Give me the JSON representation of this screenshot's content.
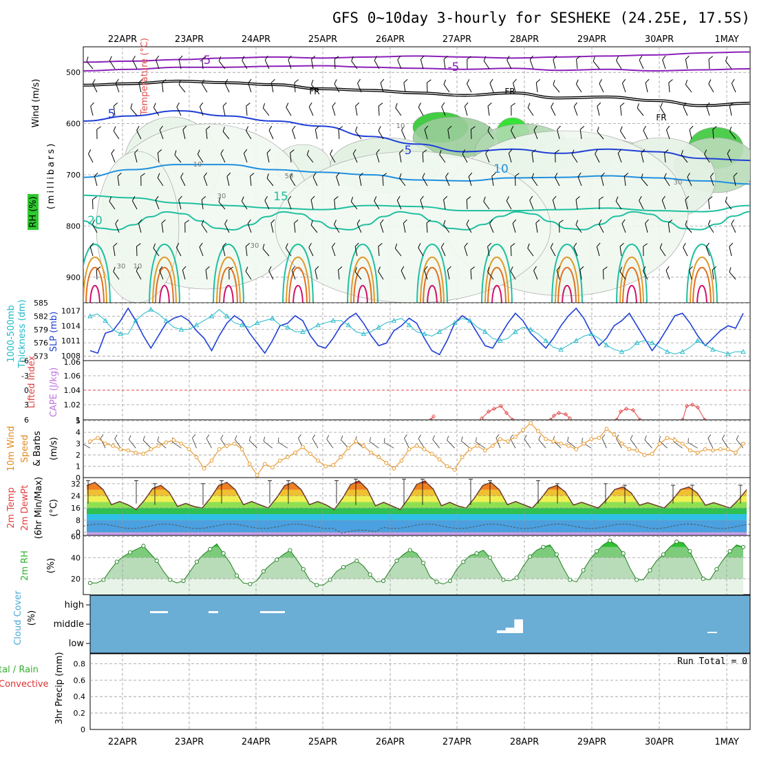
{
  "title": "GFS 0~10day 3-hourly for SESHEKE (24.25E, 17.5S)",
  "date_labels": [
    "22APR",
    "23APR",
    "24APR",
    "25APR",
    "26APR",
    "27APR",
    "28APR",
    "29APR",
    "30APR",
    "1MAY"
  ],
  "colors": {
    "purple": "#8b1fb8",
    "blue_dark": "#1f3fd8",
    "blue_mid": "#1f8fe0",
    "teal": "#1fbfa0",
    "orange": "#e09a2a",
    "magenta": "#d0106a",
    "wind": "#000000",
    "rh_green": "#20d020",
    "cyan": "#20b8c8",
    "orange_line": "#e89a30",
    "cape_red": "#e04040",
    "cloud_blue": "#6aaed6"
  },
  "chart_data": [
    {
      "type": "contour",
      "panel": "upper-air",
      "y_axis_label": "(millibars)",
      "y_ticks": [
        500,
        600,
        700,
        800,
        900
      ],
      "ylim": [
        450,
        950
      ],
      "legend_labels": {
        "wind": "Wind (m/s)",
        "temperature": "Temperature (°C)",
        "rh": "RH (%)"
      },
      "isotherm_labels": [
        "-5",
        "-5",
        "FR",
        "FR",
        "FR",
        "5",
        "5",
        "10",
        "15",
        "20"
      ],
      "rh_labels": [
        "10",
        "10",
        "30",
        "30",
        "50",
        "30",
        "10",
        "30"
      ],
      "isotherms": [
        {
          "label": "-5",
          "level": [
            480,
            478,
            475,
            472,
            470,
            472,
            470,
            468,
            470,
            472,
            470,
            468,
            466,
            462,
            460
          ],
          "color": "purple"
        },
        {
          "label": "-5b",
          "level": [
            497,
            494,
            490,
            490,
            488,
            487,
            490,
            492,
            494,
            492,
            496,
            494,
            497,
            495,
            493
          ],
          "color": "purple"
        },
        {
          "label": "FR",
          "level": [
            525,
            522,
            517,
            520,
            524,
            532,
            535,
            540,
            545,
            540,
            550,
            548,
            555,
            565,
            560
          ],
          "color": "black"
        },
        {
          "label": "5",
          "level": [
            595,
            585,
            575,
            585,
            595,
            605,
            625,
            640,
            655,
            650,
            658,
            650,
            655,
            668,
            672
          ],
          "color": "blue_dark"
        },
        {
          "label": "10",
          "level": [
            705,
            690,
            680,
            680,
            690,
            695,
            700,
            710,
            712,
            706,
            705,
            702,
            706,
            712,
            718
          ],
          "color": "blue_mid"
        },
        {
          "label": "15",
          "level": [
            740,
            745,
            755,
            760,
            765,
            768,
            760,
            762,
            770,
            770,
            768,
            765,
            770,
            772,
            760
          ],
          "color": "teal"
        }
      ]
    },
    {
      "type": "line",
      "panel": "thickness-slp",
      "y_left_label": "1000-500mb Thickness (dm)",
      "y_right_label": "SLP (mb)",
      "y_left_ticks": [
        "585",
        "582",
        "579",
        "576",
        "573"
      ],
      "y_right_ticks": [
        "1017",
        "1014",
        "1011",
        "1008"
      ],
      "left_ylim": [
        572,
        585
      ],
      "right_ylim": [
        1007,
        1018.6
      ],
      "series": [
        {
          "name_bind": "SLP (mb)",
          "color": "blue_dark",
          "values": [
            1009.0,
            1008.5,
            1012.5,
            1013.0,
            1015.0,
            1017.5,
            1015.0,
            1012.0,
            1009.5,
            1012.0,
            1014.5,
            1015.5,
            1016.0,
            1015.0,
            1013.0,
            1011.5,
            1009.0,
            1012.0,
            1014.5,
            1016.0,
            1015.0,
            1012.5,
            1010.5,
            1008.5,
            1011.0,
            1014.0,
            1014.5,
            1016.0,
            1015.0,
            1012.0,
            1010.0,
            1009.5,
            1011.5,
            1014.0,
            1015.5,
            1016.5,
            1014.5,
            1012.0,
            1010.0,
            1010.5,
            1013.0,
            1014.0,
            1015.5,
            1014.5,
            1011.5,
            1009.0,
            1008.2,
            1011.0,
            1014.5,
            1016.0,
            1015.0,
            1012.5,
            1010.0,
            1009.5,
            1012.0,
            1014.5,
            1016.5,
            1015.0,
            1012.5,
            1011.0,
            1009.5,
            1011.5,
            1014.0,
            1016.0,
            1017.5,
            1015.5,
            1012.5,
            1010.0,
            1011.5,
            1014.0,
            1015.0,
            1016.5,
            1014.0,
            1011.5,
            1009.0,
            1011.0,
            1013.5,
            1016.0,
            1016.5,
            1014.5,
            1012.0,
            1010.0,
            1011.5,
            1013.0,
            1014.0,
            1013.5,
            1016.5
          ]
        },
        {
          "name_bind": "1000-500mb Thickness (dm)",
          "color": "cyan",
          "values": [
            582.0,
            582.5,
            581.0,
            579.0,
            578.0,
            578.0,
            581.0,
            582.5,
            583.5,
            582.5,
            581.0,
            579.5,
            579.0,
            579.0,
            580.0,
            581.0,
            582.0,
            583.5,
            582.0,
            580.5,
            580.0,
            579.5,
            580.5,
            581.0,
            581.5,
            580.0,
            579.5,
            578.5,
            578.5,
            579.0,
            580.0,
            580.5,
            581.0,
            581.0,
            580.0,
            578.5,
            578.0,
            578.5,
            579.5,
            580.5,
            581.0,
            581.5,
            580.0,
            578.5,
            578.0,
            577.5,
            578.5,
            579.5,
            580.5,
            581.5,
            581.0,
            579.5,
            578.5,
            577.0,
            576.5,
            577.0,
            578.5,
            579.5,
            579.0,
            578.0,
            576.5,
            575.0,
            574.5,
            575.5,
            576.5,
            577.5,
            578.0,
            577.0,
            575.5,
            574.5,
            574.0,
            574.5,
            576.0,
            576.5,
            576.0,
            575.0,
            574.0,
            573.5,
            574.0,
            575.0,
            576.5,
            575.5,
            574.5,
            574.0,
            573.5,
            574.0,
            574.0
          ]
        }
      ]
    },
    {
      "type": "line",
      "panel": "stability",
      "y_left_label": "Lifted Index",
      "y_right_label": "CAPE (J/kg)",
      "y_left_ticks": [
        "-6",
        "-3",
        "0",
        "3",
        "6"
      ],
      "y_right_ticks": [
        "1.06",
        "1.04",
        "1.02",
        "1"
      ],
      "cape_top_tick": "1.06",
      "series": [
        {
          "name_bind": "CAPE (J/kg)",
          "color": "cape_red",
          "segments": [
            [
              [
                626,
                610
              ],
              [
                630,
                605
              ]
            ],
            [
              [
                700,
                608
              ],
              [
                710,
                598
              ],
              [
                718,
                594
              ],
              [
                728,
                590
              ],
              [
                736,
                600
              ],
              [
                745,
                610
              ]
            ],
            [
              [
                800,
                610
              ],
              [
                805,
                604
              ],
              [
                812,
                600
              ],
              [
                822,
                602
              ],
              [
                828,
                608
              ]
            ],
            [
              [
                896,
                610
              ],
              [
                902,
                598
              ],
              [
                910,
                594
              ],
              [
                920,
                596
              ],
              [
                930,
                610
              ]
            ],
            [
              [
                992,
                610
              ],
              [
                998,
                590
              ],
              [
                1006,
                588
              ],
              [
                1014,
                592
              ],
              [
                1024,
                610
              ]
            ]
          ]
        }
      ]
    },
    {
      "type": "line",
      "panel": "10m-wind",
      "y_label": "10m Wind Speed & Barbs (m/s)",
      "y_ticks": [
        "5",
        "4",
        "3",
        "2",
        "1",
        "0"
      ],
      "ylim": [
        0,
        5.1
      ],
      "series": [
        {
          "name_bind": "10m Wind Speed & Barbs (m/s)",
          "color": "orange_line",
          "values": [
            3.2,
            3.5,
            3.0,
            2.8,
            2.5,
            2.4,
            2.2,
            2.1,
            2.5,
            2.8,
            3.1,
            3.3,
            3.0,
            2.5,
            1.8,
            0.8,
            1.5,
            2.5,
            2.8,
            3.0,
            2.5,
            1.2,
            0.2,
            1.2,
            0.9,
            1.5,
            1.8,
            2.2,
            2.7,
            2.1,
            1.5,
            1.0,
            1.1,
            1.8,
            2.6,
            3.2,
            2.8,
            2.2,
            1.8,
            1.3,
            0.8,
            1.5,
            2.5,
            2.8,
            2.5,
            2.1,
            1.6,
            1.0,
            0.7,
            1.8,
            2.5,
            2.8,
            2.4,
            2.8,
            3.4,
            3.2,
            3.6,
            4.2,
            4.8,
            4.1,
            3.4,
            3.2,
            3.0,
            2.8,
            2.5,
            3.0,
            3.4,
            3.5,
            4.3,
            3.8,
            3.0,
            2.5,
            2.4,
            2.0,
            2.1,
            3.0,
            3.5,
            3.3,
            3.0,
            2.4,
            2.2,
            2.5,
            2.4,
            2.5,
            2.5,
            2.2,
            3.0
          ]
        }
      ]
    },
    {
      "type": "area",
      "panel": "2m-temp",
      "y_label": "2m Temp 2m DewPt (6hr Min/Max) (°C)",
      "y_ticks": [
        "32",
        "24",
        "16",
        "8",
        "0"
      ],
      "ylim": [
        -2,
        36
      ],
      "temperature_peaks": [
        33,
        31,
        33,
        33,
        34,
        34,
        33,
        31,
        30,
        30
      ],
      "temperature_mins": [
        16,
        15,
        16,
        16,
        15,
        15,
        16,
        16,
        16,
        16
      ]
    },
    {
      "type": "area",
      "panel": "2m-rh",
      "y_label": "2m RH (%)",
      "y_ticks": [
        "60",
        "40",
        "20"
      ],
      "ylim": [
        5,
        61
      ],
      "values": [
        16,
        16,
        19,
        28,
        36,
        41,
        45,
        48,
        51,
        44,
        37,
        27,
        19,
        16,
        18,
        27,
        36,
        43,
        48,
        53,
        44,
        35,
        23,
        16,
        15,
        18,
        27,
        33,
        38,
        43,
        47,
        38,
        29,
        18,
        14,
        14,
        19,
        27,
        31,
        34,
        37,
        32,
        24,
        17,
        18,
        28,
        37,
        43,
        47,
        44,
        35,
        22,
        17,
        15,
        18,
        29,
        36,
        42,
        44,
        47,
        40,
        29,
        19,
        18,
        21,
        32,
        41,
        47,
        50,
        52,
        43,
        30,
        19,
        17,
        28,
        38,
        46,
        52,
        56,
        52,
        44,
        30,
        19,
        19,
        28,
        37,
        43,
        50,
        55,
        54,
        46,
        33,
        20,
        19,
        29,
        38,
        46,
        52,
        50
      ]
    },
    {
      "type": "bar",
      "panel": "cloud-cover",
      "y_label": "Cloud Cover (%)",
      "levels": [
        "high",
        "middle",
        "low"
      ],
      "white_segments": [
        {
          "level": "high",
          "x": [
            218,
            244
          ]
        },
        {
          "level": "high",
          "x": [
            303,
            317
          ]
        },
        {
          "level": "high",
          "x": [
            378,
            414
          ]
        },
        {
          "level": "middle",
          "x": [
            722,
            760
          ],
          "height": [
            4,
            8,
            20
          ]
        },
        {
          "level": "middle",
          "x": [
            1028,
            1042
          ],
          "height": [
            2
          ]
        }
      ]
    },
    {
      "type": "bar",
      "panel": "precip",
      "y_label": "3hr Precip (mm)",
      "legend": "Total / Rain Convective",
      "y_ticks": [
        "0.8",
        "0.6",
        "0.4",
        "0.2",
        "0"
      ],
      "ylim": [
        0,
        0.92
      ],
      "run_total": "Run Total = 0"
    }
  ],
  "panel_labels": {
    "upper_wind": "Wind (m/s)",
    "upper_temp": "Temperature (°C)",
    "upper_rh": "RH (%)",
    "upper_mb": "(millibars)",
    "thick": "1000-500mb",
    "thick2": "Thickness (dm)",
    "slp": "SLP (mb)",
    "li": "Lifted Index",
    "cape": "CAPE (J/kg)",
    "wind_a": "10m Wind",
    "wind_b": "Speed",
    "wind_c": "& Barbs",
    "wind_d": "(m/s)",
    "temp_a": "2m Temp",
    "temp_b": "2m DewPt",
    "temp_c": "(6hr Min/Max)",
    "temp_d": "(°C)",
    "rh_a": "2m RH",
    "rh_b": "(%)",
    "cloud_a": "Cloud Cover",
    "cloud_b": "(%)",
    "precip_a": "tal / Rain",
    "precip_b": "Convective",
    "precip_c": "3hr Precip (mm)"
  }
}
